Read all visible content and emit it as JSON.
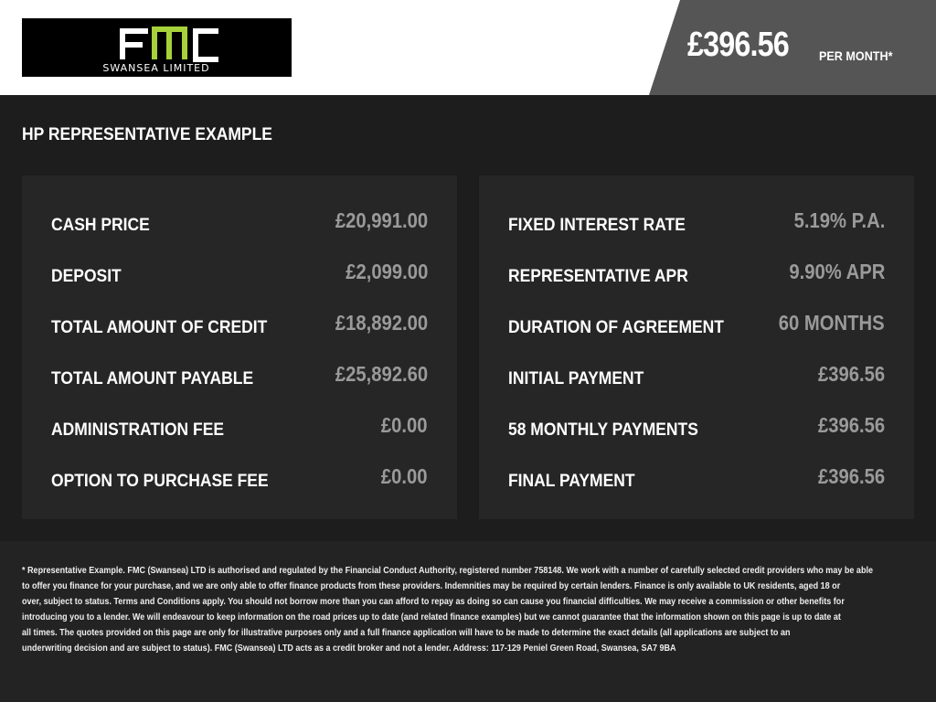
{
  "logo": {
    "text": "FMC",
    "subtext": "SWANSEA LIMITED",
    "accent": "#a6d13a"
  },
  "header": {
    "price": "£396.56",
    "per_month": "PER MONTH*"
  },
  "section_title": "HP REPRESENTATIVE EXAMPLE",
  "left_panel": [
    {
      "label": "CASH PRICE",
      "value": "£20,991.00"
    },
    {
      "label": "DEPOSIT",
      "value": "£2,099.00"
    },
    {
      "label": "TOTAL AMOUNT OF CREDIT",
      "value": "£18,892.00"
    },
    {
      "label": "TOTAL AMOUNT PAYABLE",
      "value": "£25,892.60"
    },
    {
      "label": "ADMINISTRATION FEE",
      "value": "£0.00"
    },
    {
      "label": "OPTION TO PURCHASE FEE",
      "value": "£0.00"
    }
  ],
  "right_panel": [
    {
      "label": "FIXED INTEREST RATE",
      "value": "5.19% P.A."
    },
    {
      "label": "REPRESENTATIVE APR",
      "value": "9.90% APR"
    },
    {
      "label": "DURATION OF AGREEMENT",
      "value": "60 MONTHS"
    },
    {
      "label": "INITIAL PAYMENT",
      "value": "£396.56"
    },
    {
      "label": "58 MONTHLY PAYMENTS",
      "value": "£396.56"
    },
    {
      "label": "FINAL PAYMENT",
      "value": "£396.56"
    }
  ],
  "disclaimer": [
    "* Representative Example. FMC (Swansea) LTD is authorised and regulated by the Financial Conduct Authority, registered number 758148. We work with a number of carefully selected credit providers who may be able",
    "to offer you finance for your purchase, and we are only able to offer finance products from these providers. Indemnities may be required by certain lenders. Finance is only available to UK residents, aged 18 or",
    "over, subject to status. Terms and Conditions apply. You should not borrow more than you can afford to repay as doing so can cause you financial difficulties. We may receive a commission or other benefits for",
    "introducing you to a lender. We will endeavour to keep information on the road prices up to date (and related finance examples) but we cannot guarantee that the information shown on this page is up to date at",
    "all times. The quotes provided on this page are only for illustrative purposes only and a full finance application will have to be made to determine the exact details (all applications are subject to an",
    "underwriting decision and are subject to status). FMC (Swansea) LTD acts as a credit broker and not a lender. Address: 117-129 Peniel Green Road, Swansea, SA7 9BA"
  ]
}
